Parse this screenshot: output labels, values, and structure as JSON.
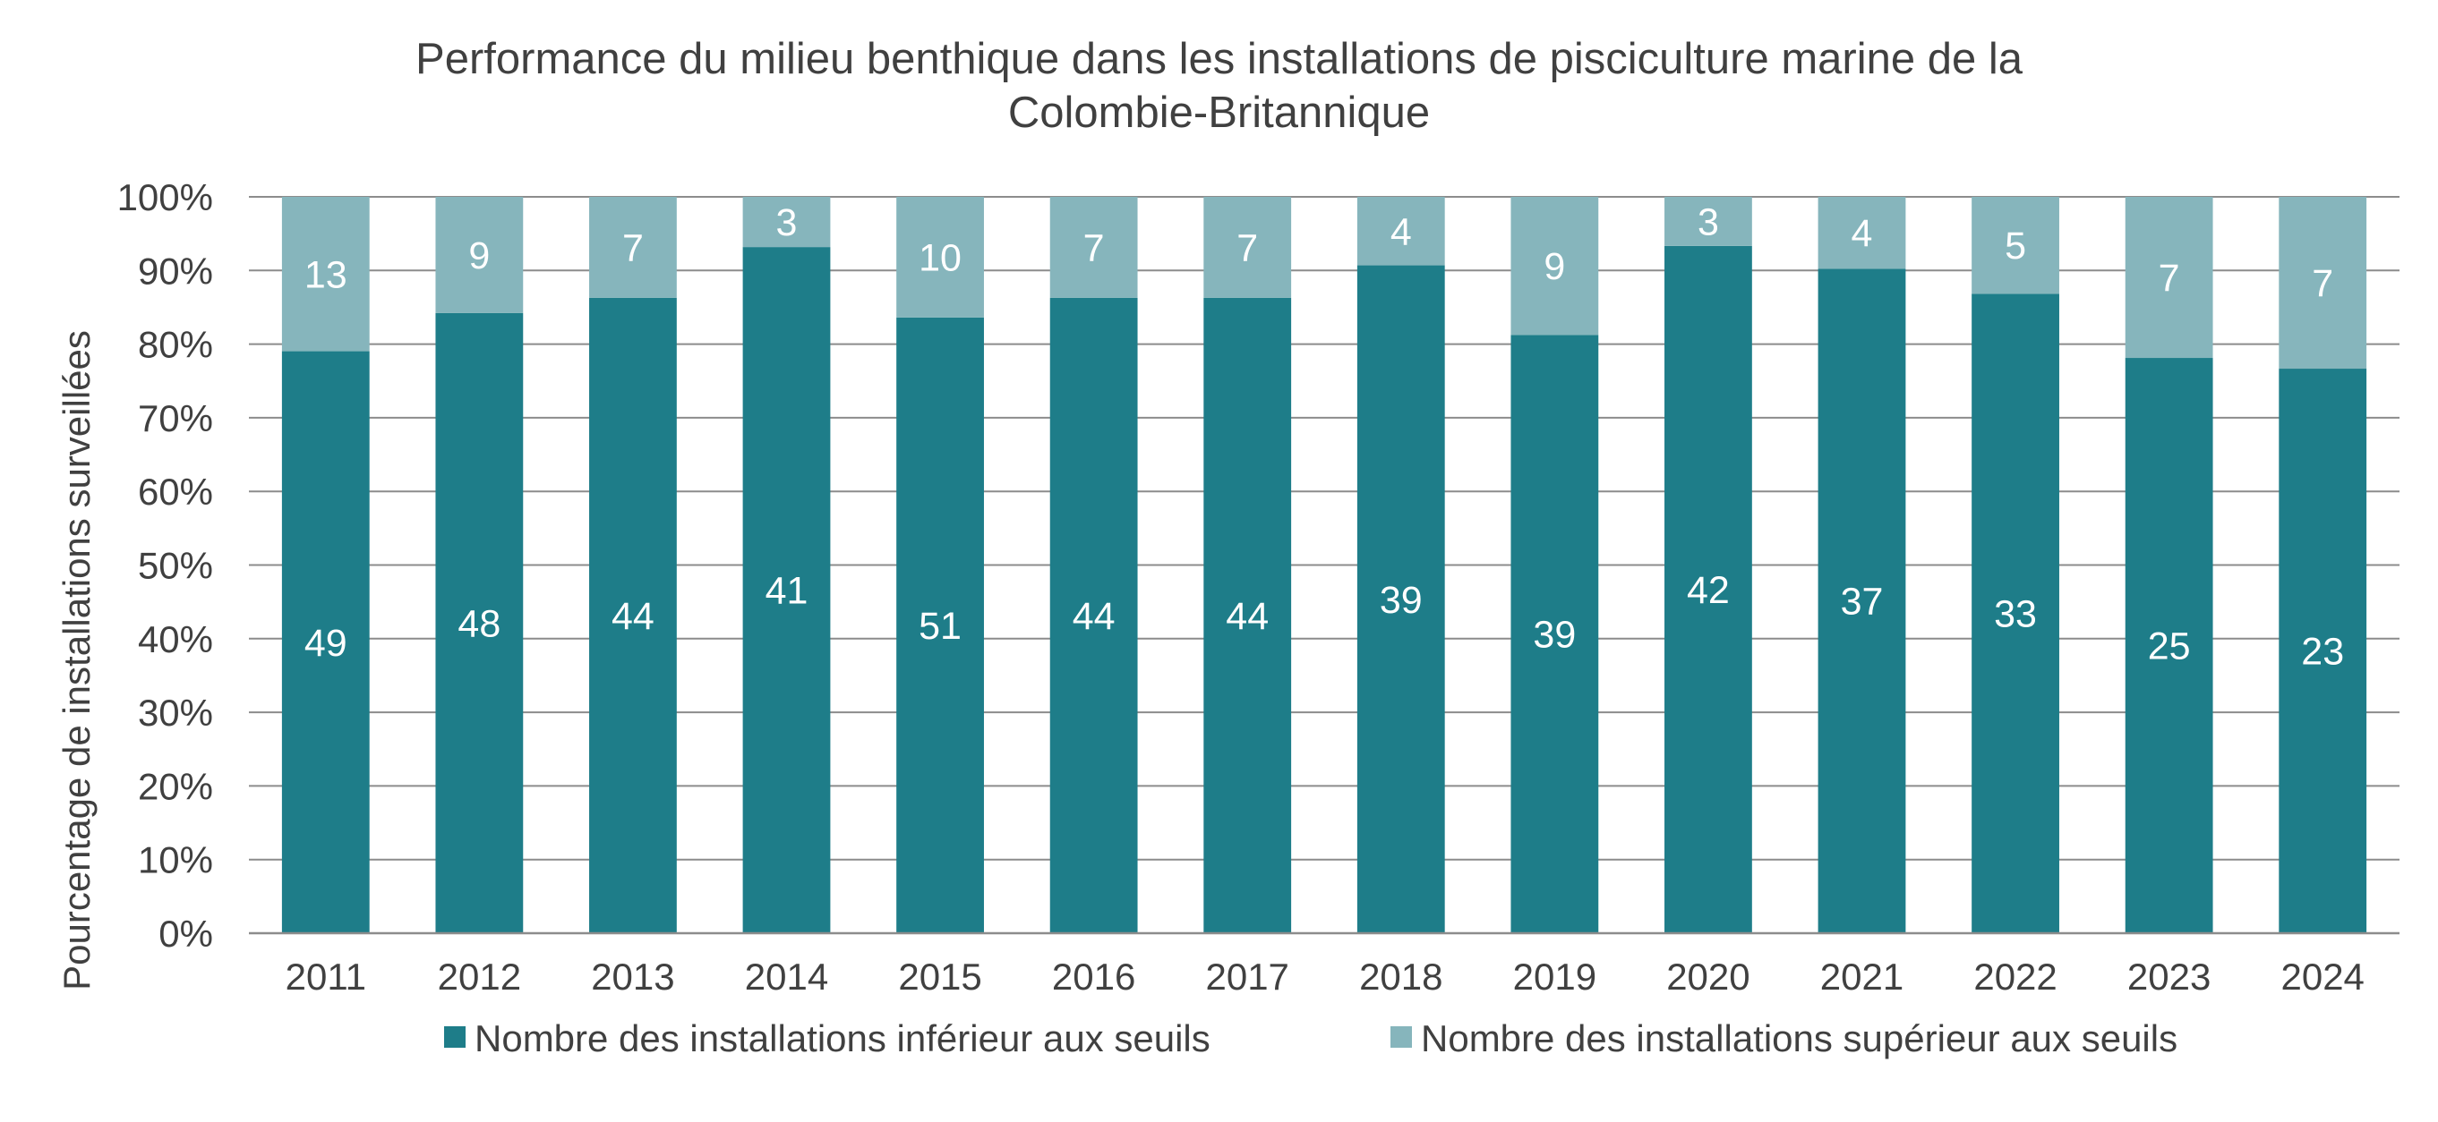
{
  "chart_data": {
    "type": "bar",
    "stacked": true,
    "normalized": true,
    "title": "Performance du milieu benthique dans les installations de pisciculture marine de la Colombie-Britannique",
    "title_lines": [
      "Performance du milieu benthique dans les installations de pisciculture marine de la",
      "Colombie-Britannique"
    ],
    "xlabel": "",
    "ylabel": "Pourcentage de installations surveillées",
    "ylim": [
      0,
      100
    ],
    "yticks": [
      "0%",
      "10%",
      "20%",
      "30%",
      "40%",
      "50%",
      "60%",
      "70%",
      "80%",
      "90%",
      "100%"
    ],
    "grid": true,
    "legend_position": "bottom",
    "categories": [
      "2011",
      "2012",
      "2013",
      "2014",
      "2015",
      "2016",
      "2017",
      "2018",
      "2019",
      "2020",
      "2021",
      "2022",
      "2023",
      "2024"
    ],
    "series": [
      {
        "name": "Nombre des installations inférieur aux seuils",
        "color": "#1e7d89",
        "values": [
          49,
          48,
          44,
          41,
          51,
          44,
          44,
          39,
          39,
          42,
          37,
          33,
          25,
          23
        ]
      },
      {
        "name": "Nombre des installations supérieur aux seuils",
        "color": "#86b5bc",
        "values": [
          13,
          9,
          7,
          3,
          10,
          7,
          7,
          4,
          9,
          3,
          4,
          5,
          7,
          7
        ]
      }
    ]
  }
}
